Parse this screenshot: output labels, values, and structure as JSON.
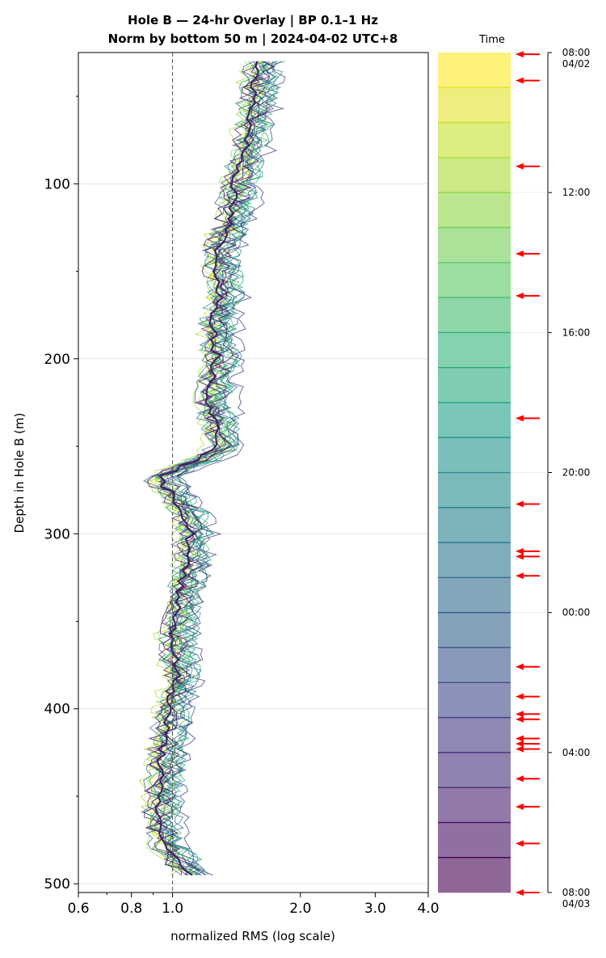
{
  "chart_data": {
    "type": "line",
    "title_line1": "Hole B — 24-hr Overlay  |  BP 0.1–1 Hz",
    "title_line2": "Norm by bottom 50 m  |  2024-04-02 UTC+8",
    "xlabel": "normalized RMS  (log scale)",
    "ylabel": "Depth in Hole B (m)",
    "x_scale": "log",
    "xlim": [
      0.6,
      4.0
    ],
    "ylim": [
      505,
      25
    ],
    "x_ticks": [
      0.6,
      0.8,
      1.0,
      2.0,
      3.0,
      4.0
    ],
    "x_tick_labels": [
      "0.6",
      "0.8",
      "1.0",
      "2.0",
      "3.0",
      "4.0"
    ],
    "y_ticks": [
      100,
      200,
      300,
      400,
      500
    ],
    "y_tick_labels": [
      "100",
      "200",
      "300",
      "400",
      "500"
    ],
    "reference_line_x": 1.0,
    "grid": "horizontal",
    "series_count": 24,
    "bold_series_index": 5,
    "profile_depths": [
      30,
      50,
      75,
      100,
      125,
      140,
      160,
      180,
      200,
      225,
      250,
      268,
      285,
      300,
      330,
      360,
      380,
      400,
      420,
      440,
      460,
      480,
      495
    ],
    "profile_values": [
      1.6,
      1.55,
      1.5,
      1.4,
      1.35,
      1.25,
      1.3,
      1.25,
      1.27,
      1.22,
      1.3,
      0.92,
      1.05,
      1.1,
      1.05,
      1.0,
      1.02,
      0.98,
      0.95,
      0.93,
      0.92,
      0.96,
      1.1
    ],
    "colorbar": {
      "title": "Time",
      "colors": [
        "#fde725",
        "#b5de2b",
        "#6ece58",
        "#35b779",
        "#1f9e89",
        "#26828e",
        "#31688e",
        "#3e4989",
        "#482878",
        "#440154"
      ],
      "tick_labels": [
        {
          "time": "08:00",
          "date": "04/02",
          "hours": 0
        },
        {
          "time": "12:00",
          "date": "",
          "hours": 4
        },
        {
          "time": "16:00",
          "date": "",
          "hours": 8
        },
        {
          "time": "20:00",
          "date": "",
          "hours": 12
        },
        {
          "time": "00:00",
          "date": "",
          "hours": 16
        },
        {
          "time": "04:00",
          "date": "",
          "hours": 20
        },
        {
          "time": "08:00",
          "date": "04/03",
          "hours": 24
        }
      ],
      "arrow_hours": [
        0.05,
        0.8,
        3.25,
        5.75,
        6.95,
        10.45,
        12.9,
        14.25,
        14.4,
        14.95,
        17.55,
        18.4,
        18.9,
        19.05,
        19.6,
        19.75,
        19.9,
        20.75,
        21.55,
        22.6,
        24.0
      ]
    }
  }
}
